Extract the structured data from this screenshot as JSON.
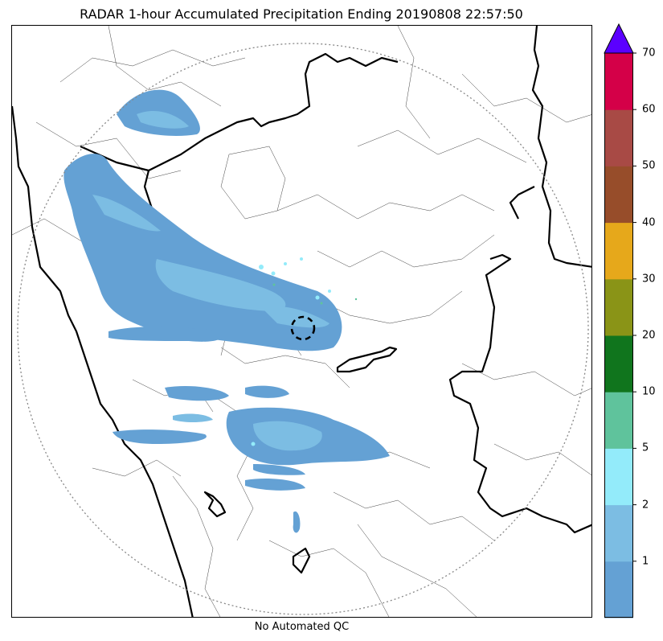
{
  "title": "RADAR 1-hour Accumulated Precipitation Ending 20190808 22:57:50",
  "footer": "No Automated QC",
  "colorbar": {
    "tick_labels": [
      "1",
      "2",
      "5",
      "10",
      "20",
      "30",
      "40",
      "50",
      "60",
      "70"
    ],
    "bands": [
      {
        "range": "0-1",
        "color": "#64a1d4"
      },
      {
        "range": "1-2",
        "color": "#7cbde3"
      },
      {
        "range": "2-5",
        "color": "#93ebfa"
      },
      {
        "range": "5-10",
        "color": "#5fc39c"
      },
      {
        "range": "10-20",
        "color": "#10751d"
      },
      {
        "range": "20-30",
        "color": "#8a9417"
      },
      {
        "range": "30-40",
        "color": "#e6a81b"
      },
      {
        "range": "40-50",
        "color": "#974d2a"
      },
      {
        "range": "50-60",
        "color": "#a84a45"
      },
      {
        "range": "60-70",
        "color": "#d40048"
      }
    ],
    "extend_color": "#5b00ff"
  },
  "map": {
    "background": "#ffffff",
    "coastline_color": "#000000",
    "boundary_color": "#000000",
    "range_ring_color": "#888888",
    "radar_marker": "dashed-circle"
  }
}
